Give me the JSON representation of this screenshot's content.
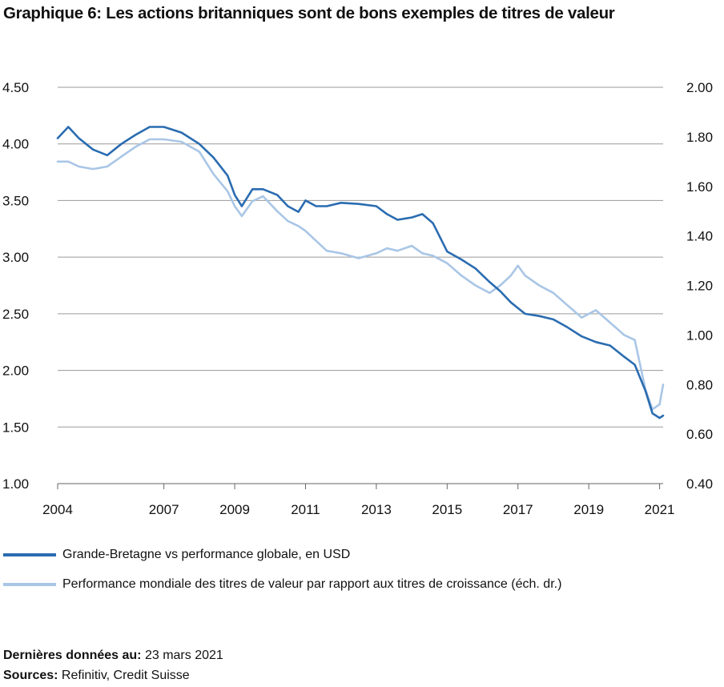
{
  "title": "Graphique 6: Les actions britanniques sont de bons exemples de titres de valeur",
  "colors": {
    "series_primary": "#2a6cb0",
    "series_secondary": "#a9c6e6",
    "grid": "#9a9a9a",
    "axis": "#666666"
  },
  "chart_data": {
    "type": "line",
    "title": "Graphique 6: Les actions britanniques sont de bons exemples de titres de valeur",
    "xlabel": "",
    "ylabel": "",
    "grid": true,
    "legend_placement": "bottom",
    "x_tick_labels": [
      "2004",
      "2007",
      "2009",
      "2011",
      "2013",
      "2015",
      "2017",
      "2019",
      "2021"
    ],
    "x_tick_values": [
      2004,
      2007,
      2009,
      2011,
      2013,
      2015,
      2017,
      2019,
      2021
    ],
    "xlim": [
      2004,
      2021.1
    ],
    "y_left": {
      "ylim": [
        1.0,
        4.5
      ],
      "tick_labels": [
        "4.50",
        "4.00",
        "3.50",
        "3.00",
        "2.50",
        "2.00",
        "1.50",
        "1.00"
      ],
      "tick_values": [
        4.5,
        4.0,
        3.5,
        3.0,
        2.5,
        2.0,
        1.5,
        1.0
      ]
    },
    "y_right": {
      "ylim": [
        0.4,
        2.0
      ],
      "tick_labels": [
        "2.00",
        "1.80",
        "1.60",
        "1.40",
        "1.20",
        "1.00",
        "0.80",
        "0.60",
        "0.40"
      ],
      "tick_values": [
        2.0,
        1.8,
        1.6,
        1.4,
        1.2,
        1.0,
        0.8,
        0.6,
        0.4
      ]
    },
    "series": [
      {
        "name": "Grande-Bretagne vs performance globale, en USD",
        "axis": "left",
        "x": [
          2004.0,
          2004.3,
          2004.6,
          2005.0,
          2005.4,
          2005.8,
          2006.2,
          2006.6,
          2007.0,
          2007.5,
          2008.0,
          2008.4,
          2008.8,
          2009.0,
          2009.2,
          2009.5,
          2009.8,
          2010.2,
          2010.5,
          2010.8,
          2011.0,
          2011.3,
          2011.6,
          2012.0,
          2012.5,
          2013.0,
          2013.3,
          2013.6,
          2014.0,
          2014.3,
          2014.6,
          2015.0,
          2015.4,
          2015.8,
          2016.2,
          2016.5,
          2016.8,
          2017.2,
          2017.6,
          2018.0,
          2018.4,
          2018.8,
          2019.2,
          2019.6,
          2020.0,
          2020.3,
          2020.6,
          2020.8,
          2021.0,
          2021.1
        ],
        "values": [
          4.05,
          4.15,
          4.05,
          3.95,
          3.9,
          4.0,
          4.08,
          4.15,
          4.15,
          4.1,
          4.0,
          3.88,
          3.72,
          3.55,
          3.45,
          3.6,
          3.6,
          3.55,
          3.45,
          3.4,
          3.5,
          3.45,
          3.45,
          3.48,
          3.47,
          3.45,
          3.38,
          3.33,
          3.35,
          3.38,
          3.3,
          3.05,
          2.98,
          2.9,
          2.78,
          2.7,
          2.6,
          2.5,
          2.48,
          2.45,
          2.38,
          2.3,
          2.25,
          2.22,
          2.12,
          2.05,
          1.82,
          1.62,
          1.58,
          1.6
        ]
      },
      {
        "name": "Performance mondiale des titres de valeur par rapport aux titres de croissance (éch. dr.)",
        "axis": "right",
        "x": [
          2004.0,
          2004.3,
          2004.6,
          2005.0,
          2005.4,
          2005.8,
          2006.2,
          2006.6,
          2007.0,
          2007.5,
          2008.0,
          2008.4,
          2008.8,
          2009.0,
          2009.2,
          2009.5,
          2009.8,
          2010.2,
          2010.5,
          2010.8,
          2011.0,
          2011.3,
          2011.6,
          2012.0,
          2012.5,
          2013.0,
          2013.3,
          2013.6,
          2014.0,
          2014.3,
          2014.6,
          2015.0,
          2015.4,
          2015.8,
          2016.2,
          2016.5,
          2016.8,
          2017.0,
          2017.2,
          2017.6,
          2018.0,
          2018.4,
          2018.8,
          2019.2,
          2019.6,
          2020.0,
          2020.3,
          2020.6,
          2020.8,
          2021.0,
          2021.1
        ],
        "values": [
          1.7,
          1.7,
          1.68,
          1.67,
          1.68,
          1.72,
          1.76,
          1.79,
          1.79,
          1.78,
          1.74,
          1.65,
          1.58,
          1.52,
          1.48,
          1.54,
          1.56,
          1.5,
          1.46,
          1.44,
          1.42,
          1.38,
          1.34,
          1.33,
          1.31,
          1.33,
          1.35,
          1.34,
          1.36,
          1.33,
          1.32,
          1.29,
          1.24,
          1.2,
          1.17,
          1.2,
          1.24,
          1.28,
          1.24,
          1.2,
          1.17,
          1.12,
          1.07,
          1.1,
          1.05,
          1.0,
          0.98,
          0.78,
          0.7,
          0.72,
          0.8
        ]
      }
    ]
  },
  "footer": {
    "last_data_label": "Dernières données au:",
    "last_data_value": "23 mars 2021",
    "sources_label": "Sources:",
    "sources_value": "Refinitiv, Credit Suisse"
  }
}
